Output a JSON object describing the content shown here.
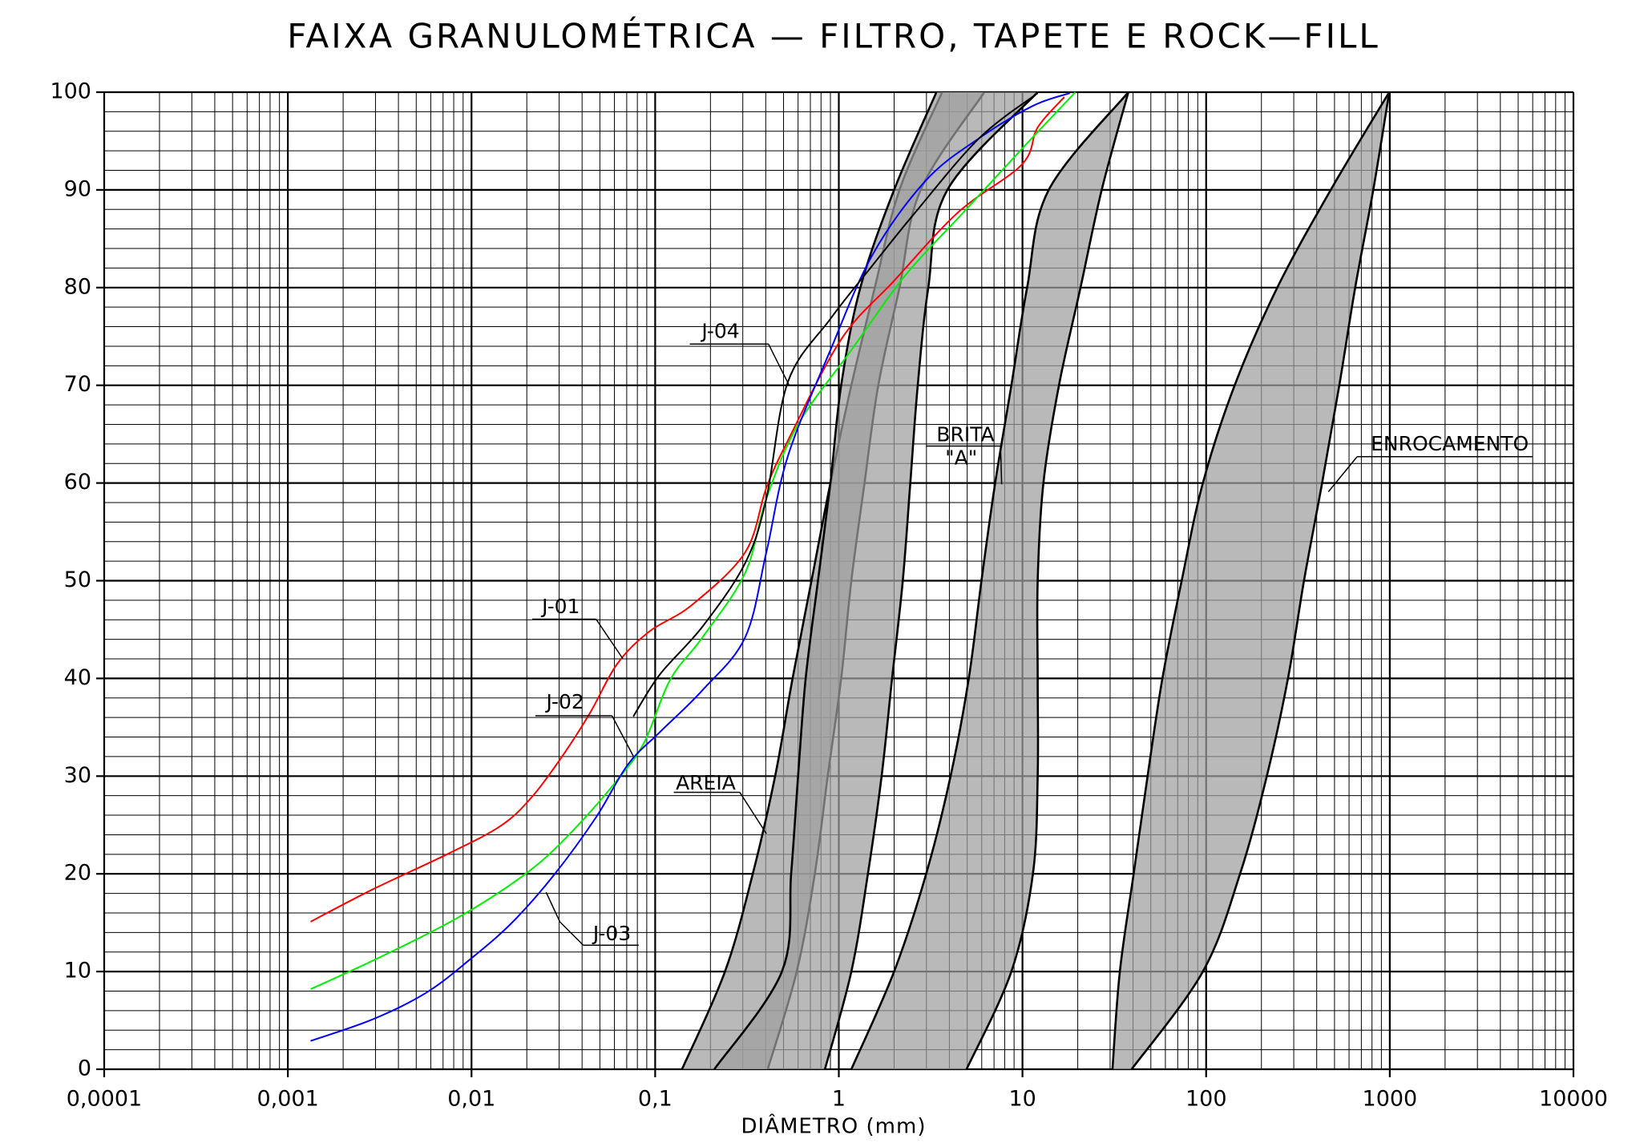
{
  "chart_data": {
    "type": "line",
    "title": "FAIXA GRANULOMÉTRICA — FILTRO, TAPETE E ROCK—FILL",
    "x_label": "DIÂMETRO  (mm)",
    "xscale": "log",
    "xlim": [
      0.0001,
      10000
    ],
    "xticks": [
      {
        "value": 0.0001,
        "label": "0,0001"
      },
      {
        "value": 0.001,
        "label": "0,001"
      },
      {
        "value": 0.01,
        "label": "0,01"
      },
      {
        "value": 0.1,
        "label": "0,1"
      },
      1,
      10,
      100,
      1000,
      10000
    ],
    "ylim": [
      0,
      100
    ],
    "yticks": [
      0,
      10,
      20,
      30,
      40,
      50,
      60,
      70,
      80,
      90,
      100
    ],
    "grid": true,
    "series": [
      {
        "name": "J-01",
        "color": "#ff0000",
        "x": [
          0.00133,
          0.00289,
          0.00736,
          0.0144,
          0.0214,
          0.0319,
          0.0446,
          0.0622,
          0.0929,
          0.158,
          0.309,
          0.403,
          0.527,
          1.03,
          2.0,
          4.46,
          9.93,
          12.1,
          16.9
        ],
        "values": [
          15.1,
          18.4,
          22,
          24.9,
          27.9,
          32.3,
          36.6,
          41.5,
          44.8,
          47.5,
          52.9,
          59.5,
          64.3,
          74.7,
          80.7,
          87.7,
          92.6,
          96.4,
          99.5
        ]
      },
      {
        "name": "J-02",
        "color": "#00ee00",
        "x": [
          0.00133,
          0.00289,
          0.00736,
          0.0144,
          0.0244,
          0.039,
          0.0622,
          0.0869,
          0.121,
          0.181,
          0.309,
          0.403,
          0.6,
          1.17,
          2.29,
          4.77,
          9.93,
          19.4
        ],
        "values": [
          8.2,
          11.1,
          14.9,
          18.2,
          21.4,
          25.2,
          29.6,
          33.4,
          39.9,
          44.2,
          50.8,
          58.4,
          66,
          73.6,
          81.2,
          87.7,
          94.2,
          100
        ]
      },
      {
        "name": "J-03",
        "color": "#0000ff",
        "x": [
          0.00133,
          0.00289,
          0.00563,
          0.00961,
          0.0164,
          0.0279,
          0.0477,
          0.0711,
          0.106,
          0.181,
          0.309,
          0.403,
          0.527,
          0.9,
          1.53,
          2.99,
          5.82,
          11.4,
          18.1
        ],
        "values": [
          2.9,
          5.1,
          7.8,
          11.1,
          14.9,
          19.8,
          25.8,
          31.2,
          34.5,
          38.8,
          44.2,
          52.9,
          62.7,
          73.6,
          83.4,
          91,
          95.3,
          98.6,
          99.9
        ]
      },
      {
        "name": "J-04",
        "color": "#000000",
        "x": [
          0.076,
          0.106,
          0.181,
          0.309,
          0.403,
          0.527,
          0.9,
          1.53,
          2.61,
          5.82,
          12.1
        ],
        "values": [
          36.1,
          40.4,
          45.3,
          51.8,
          58.4,
          70.3,
          76.8,
          82.3,
          87.7,
          95.3,
          99.9
        ]
      }
    ],
    "bands": [
      {
        "label_lines": [
          "AREIA"
        ],
        "color": "#9e9e9e",
        "y": [
          0,
          10,
          20,
          30,
          40,
          50,
          60,
          70,
          80,
          90,
          100
        ],
        "lower": [
          0.14,
          0.24,
          0.34,
          0.45,
          0.56,
          0.71,
          0.9,
          1.17,
          1.57,
          2.14,
          3.65
        ],
        "upper": [
          0.41,
          0.59,
          0.74,
          0.87,
          1.03,
          1.17,
          1.38,
          1.64,
          2.14,
          2.79,
          6.2
        ]
      },
      {
        "color": "#9e9e9e",
        "y": [
          0,
          10,
          20,
          30,
          40,
          50,
          60,
          70,
          80,
          90,
          100
        ],
        "lower": [
          0.21,
          0.49,
          0.55,
          0.6,
          0.66,
          0.77,
          0.9,
          1.03,
          1.31,
          2.0,
          3.4
        ],
        "upper": [
          0.84,
          1.17,
          1.44,
          1.71,
          1.95,
          2.23,
          2.45,
          2.69,
          3.07,
          3.9,
          12.1
        ]
      },
      {
        "label_lines": [
          "BRITA",
          "\"A\""
        ],
        "color": "#9e9e9e",
        "y": [
          0,
          10,
          20,
          30,
          40,
          50,
          60,
          70,
          80,
          90,
          100
        ],
        "lower": [
          1.17,
          2.0,
          2.99,
          4.06,
          5.1,
          5.98,
          7.1,
          8.7,
          10.6,
          13.9,
          37.7
        ],
        "upper": [
          4.96,
          8.7,
          11.4,
          12.1,
          12.1,
          12.1,
          13,
          15.8,
          20.7,
          27,
          37.7
        ]
      },
      {
        "label_lines": [
          "ENROCAMENTO"
        ],
        "color": "#9e9e9e",
        "y": [
          0,
          10,
          20,
          30,
          40,
          50,
          60,
          70,
          80,
          90,
          100
        ],
        "lower": [
          30.9,
          33.9,
          40.3,
          48,
          57.8,
          73.6,
          96,
          143,
          244,
          477,
          993
        ],
        "upper": [
          39.3,
          96,
          153,
          214,
          279,
          341,
          428,
          531,
          648,
          813,
          993
        ]
      }
    ]
  }
}
